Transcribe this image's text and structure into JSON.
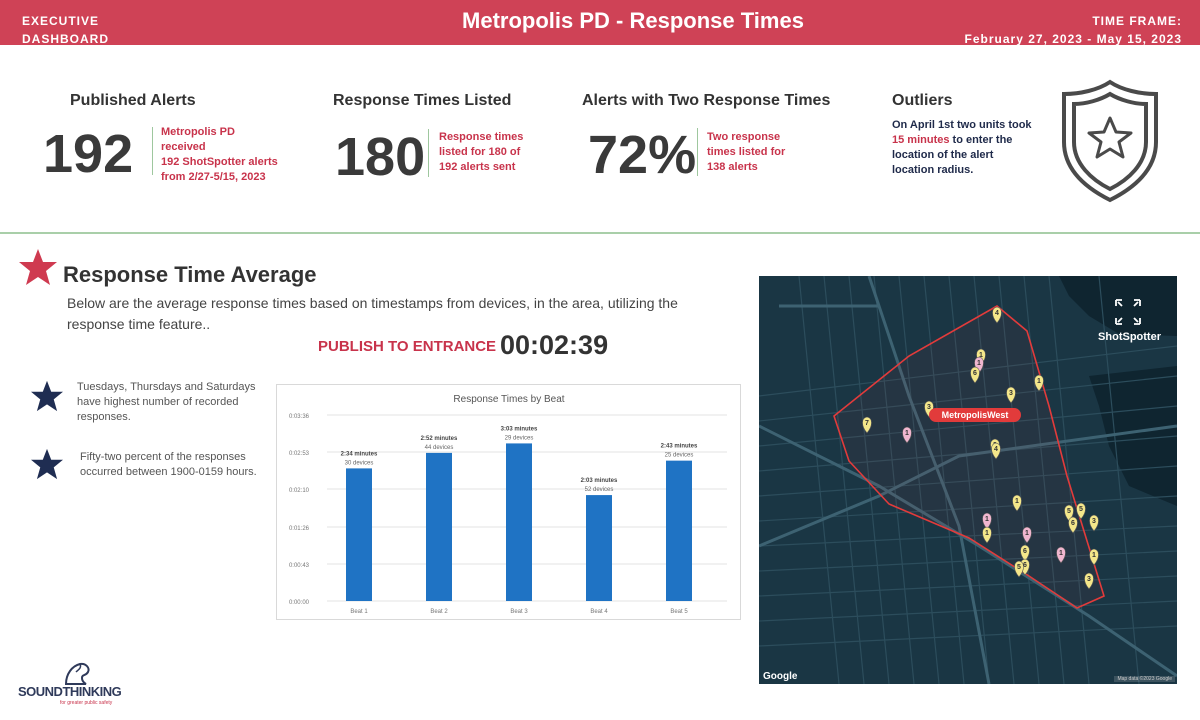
{
  "header": {
    "left_line1": "EXECUTIVE",
    "left_line2": "DASHBOARD",
    "title": "Metropolis PD - Response Times",
    "right_line1": "TIME FRAME:",
    "right_line2": "February 27, 2023 - May 15, 2023",
    "background_color": "#cf4256"
  },
  "kpis": [
    {
      "title": "Published Alerts",
      "value": "192",
      "note_line1": "Metropolis PD received",
      "note_line2": "192 ShotSpotter alerts",
      "note_line3": "from 2/27-5/15, 2023"
    },
    {
      "title": "Response Times Listed",
      "value": "180",
      "note_line1": "Response times",
      "note_line2": "listed for 180 of",
      "note_line3": "192 alerts sent"
    },
    {
      "title": "Alerts with Two Response Times",
      "value": "72%",
      "note_line1": "Two response",
      "note_line2": "times listed for",
      "note_line3": "138 alerts"
    }
  ],
  "outliers": {
    "title": "Outliers",
    "text_a": "On April 1st two units took",
    "text_highlight": "15 minutes",
    "text_b": "to enter the location of the alert location radius.",
    "icon": "shield-star-icon"
  },
  "section": {
    "title": "Response Time Average",
    "description": "Below are the average response times based on timestamps from devices, in the area, utilizing the response time feature..",
    "publish_label": "PUBLISH TO ENTRANCE",
    "publish_value": "00:02:39",
    "bullets": [
      "Tuesdays, Thursdays and Saturdays have highest number of recorded responses.",
      "Fifty-two percent of the responses occurred between 1900-0159 hours."
    ]
  },
  "chart_data": {
    "type": "bar",
    "title": "Response Times by Beat",
    "categories": [
      "Beat 1",
      "Beat 2",
      "Beat 3",
      "Beat 4",
      "Beat 5"
    ],
    "values_seconds": [
      154,
      172,
      183,
      123,
      163
    ],
    "value_labels": [
      "2:34 minutes",
      "2:52 minutes",
      "3:03 minutes",
      "2:03 minutes",
      "2:43 minutes"
    ],
    "device_labels": [
      "30 devices",
      "44 devices",
      "29 devices",
      "52 devices",
      "25 devices"
    ],
    "y_ticks": [
      "0:00:00",
      "0:00:43",
      "0:01:26",
      "0:02:10",
      "0:02:53",
      "0:03:36"
    ],
    "y_tick_seconds": [
      0,
      43,
      86,
      130,
      173,
      216
    ],
    "ylim_seconds": [
      0,
      216
    ],
    "grid": true,
    "bar_color": "#1f73c4"
  },
  "map": {
    "brand": "ShotSpotter",
    "area_label": "MetropolisWest",
    "provider": "Google",
    "attribution": "Map data ©2023 Google",
    "polygon_color": "#e23b3b",
    "markers": [
      {
        "label": "4"
      },
      {
        "label": "1"
      },
      {
        "label": "1"
      },
      {
        "label": "6"
      },
      {
        "label": "3"
      },
      {
        "label": "1"
      },
      {
        "label": "3"
      },
      {
        "label": "7"
      },
      {
        "label": "1"
      },
      {
        "label": "3"
      },
      {
        "label": "4"
      },
      {
        "label": "1"
      },
      {
        "label": "1"
      },
      {
        "label": "5"
      },
      {
        "label": "5"
      },
      {
        "label": "6"
      },
      {
        "label": "3"
      },
      {
        "label": "1"
      },
      {
        "label": "1"
      },
      {
        "label": "6"
      },
      {
        "label": "6"
      },
      {
        "label": "5"
      },
      {
        "label": "1"
      },
      {
        "label": "1"
      },
      {
        "label": "3"
      }
    ]
  },
  "footer": {
    "logo_name": "SOUNDTHINKING",
    "logo_tagline": "for greater public safety"
  }
}
